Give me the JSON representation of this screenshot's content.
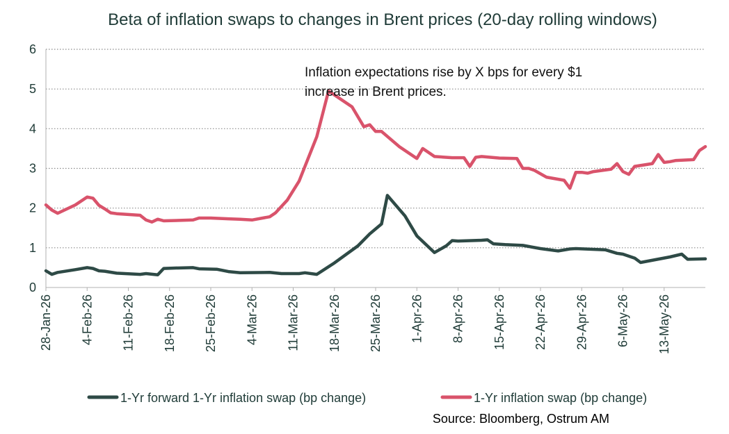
{
  "chart_data": {
    "type": "line",
    "title": "Beta of inflation swaps to changes in Brent prices (20-day rolling windows)",
    "annotation_lines": [
      "Inflation expectations rise by X bps for every $1",
      "increase in Brent prices."
    ],
    "source": "Source: Bloomberg, Ostrum AM",
    "ylim": [
      0,
      6
    ],
    "yticks": [
      "0",
      "1",
      "2",
      "3",
      "4",
      "5",
      "6"
    ],
    "xtick_labels": [
      "28-Jan-26",
      "4-Feb-26",
      "11-Feb-26",
      "18-Feb-26",
      "25-Feb-26",
      "4-Mar-26",
      "11-Mar-26",
      "18-Mar-26",
      "25-Mar-26",
      "1-Apr-26",
      "8-Apr-26",
      "15-Apr-26",
      "22-Apr-26",
      "29-Apr-26",
      "6-May-26",
      "13-May-26"
    ],
    "x_range": [
      "2026-01-28",
      "2026-05-20"
    ],
    "grid": true,
    "grid_style": "dotted horizontal",
    "legend_position": "bottom",
    "series": [
      {
        "name": "1-Yr forward 1-Yr inflation swap (bp change)",
        "color": "#2e4a46",
        "points": [
          [
            "2026-01-28",
            0.42
          ],
          [
            "2026-01-29",
            0.33
          ],
          [
            "2026-01-30",
            0.38
          ],
          [
            "2026-02-02",
            0.45
          ],
          [
            "2026-02-04",
            0.5
          ],
          [
            "2026-02-05",
            0.48
          ],
          [
            "2026-02-06",
            0.42
          ],
          [
            "2026-02-07",
            0.41
          ],
          [
            "2026-02-09",
            0.36
          ],
          [
            "2026-02-13",
            0.33
          ],
          [
            "2026-02-14",
            0.35
          ],
          [
            "2026-02-16",
            0.32
          ],
          [
            "2026-02-17",
            0.48
          ],
          [
            "2026-02-19",
            0.49
          ],
          [
            "2026-02-22",
            0.5
          ],
          [
            "2026-02-23",
            0.47
          ],
          [
            "2026-02-26",
            0.46
          ],
          [
            "2026-02-28",
            0.4
          ],
          [
            "2026-03-02",
            0.37
          ],
          [
            "2026-03-07",
            0.38
          ],
          [
            "2026-03-09",
            0.35
          ],
          [
            "2026-03-12",
            0.35
          ],
          [
            "2026-03-13",
            0.37
          ],
          [
            "2026-03-15",
            0.33
          ],
          [
            "2026-03-18",
            0.62
          ],
          [
            "2026-03-22",
            1.05
          ],
          [
            "2026-03-24",
            1.35
          ],
          [
            "2026-03-26",
            1.6
          ],
          [
            "2026-03-27",
            2.32
          ],
          [
            "2026-03-30",
            1.8
          ],
          [
            "2026-04-01",
            1.3
          ],
          [
            "2026-04-04",
            0.88
          ],
          [
            "2026-04-06",
            1.05
          ],
          [
            "2026-04-07",
            1.18
          ],
          [
            "2026-04-08",
            1.17
          ],
          [
            "2026-04-12",
            1.19
          ],
          [
            "2026-04-13",
            1.2
          ],
          [
            "2026-04-14",
            1.1
          ],
          [
            "2026-04-16",
            1.08
          ],
          [
            "2026-04-19",
            1.06
          ],
          [
            "2026-04-22",
            0.98
          ],
          [
            "2026-04-25",
            0.92
          ],
          [
            "2026-04-27",
            0.97
          ],
          [
            "2026-04-28",
            0.98
          ],
          [
            "2026-05-03",
            0.95
          ],
          [
            "2026-05-05",
            0.86
          ],
          [
            "2026-05-06",
            0.84
          ],
          [
            "2026-05-08",
            0.74
          ],
          [
            "2026-05-09",
            0.63
          ],
          [
            "2026-05-14",
            0.77
          ],
          [
            "2026-05-16",
            0.84
          ],
          [
            "2026-05-17",
            0.71
          ],
          [
            "2026-05-20",
            0.72
          ]
        ]
      },
      {
        "name": "1-Yr inflation swap (bp change)",
        "color": "#d9536b",
        "points": [
          [
            "2026-01-28",
            2.08
          ],
          [
            "2026-01-29",
            1.95
          ],
          [
            "2026-01-30",
            1.87
          ],
          [
            "2026-02-02",
            2.08
          ],
          [
            "2026-02-04",
            2.28
          ],
          [
            "2026-02-05",
            2.25
          ],
          [
            "2026-02-06",
            2.07
          ],
          [
            "2026-02-07",
            1.98
          ],
          [
            "2026-02-08",
            1.88
          ],
          [
            "2026-02-09",
            1.86
          ],
          [
            "2026-02-13",
            1.82
          ],
          [
            "2026-02-14",
            1.7
          ],
          [
            "2026-02-15",
            1.65
          ],
          [
            "2026-02-16",
            1.72
          ],
          [
            "2026-02-17",
            1.68
          ],
          [
            "2026-02-22",
            1.7
          ],
          [
            "2026-02-23",
            1.75
          ],
          [
            "2026-02-25",
            1.75
          ],
          [
            "2026-02-28",
            1.73
          ],
          [
            "2026-03-02",
            1.72
          ],
          [
            "2026-03-04",
            1.7
          ],
          [
            "2026-03-07",
            1.78
          ],
          [
            "2026-03-08",
            1.88
          ],
          [
            "2026-03-10",
            2.2
          ],
          [
            "2026-03-12",
            2.68
          ],
          [
            "2026-03-15",
            3.8
          ],
          [
            "2026-03-17",
            4.95
          ],
          [
            "2026-03-21",
            4.55
          ],
          [
            "2026-03-23",
            4.05
          ],
          [
            "2026-03-24",
            4.1
          ],
          [
            "2026-03-25",
            3.93
          ],
          [
            "2026-03-26",
            3.93
          ],
          [
            "2026-03-29",
            3.55
          ],
          [
            "2026-04-01",
            3.25
          ],
          [
            "2026-04-02",
            3.5
          ],
          [
            "2026-04-03",
            3.4
          ],
          [
            "2026-04-04",
            3.3
          ],
          [
            "2026-04-07",
            3.27
          ],
          [
            "2026-04-09",
            3.27
          ],
          [
            "2026-04-10",
            3.05
          ],
          [
            "2026-04-11",
            3.28
          ],
          [
            "2026-04-12",
            3.3
          ],
          [
            "2026-04-15",
            3.26
          ],
          [
            "2026-04-18",
            3.25
          ],
          [
            "2026-04-19",
            3.0
          ],
          [
            "2026-04-20",
            3.0
          ],
          [
            "2026-04-21",
            2.95
          ],
          [
            "2026-04-23",
            2.78
          ],
          [
            "2026-04-26",
            2.7
          ],
          [
            "2026-04-27",
            2.5
          ],
          [
            "2026-04-28",
            2.9
          ],
          [
            "2026-04-29",
            2.9
          ],
          [
            "2026-04-30",
            2.88
          ],
          [
            "2026-05-01",
            2.92
          ],
          [
            "2026-05-04",
            2.98
          ],
          [
            "2026-05-05",
            3.12
          ],
          [
            "2026-05-06",
            2.92
          ],
          [
            "2026-05-07",
            2.85
          ],
          [
            "2026-05-08",
            3.05
          ],
          [
            "2026-05-11",
            3.12
          ],
          [
            "2026-05-12",
            3.35
          ],
          [
            "2026-05-13",
            3.15
          ],
          [
            "2026-05-14",
            3.17
          ],
          [
            "2026-05-15",
            3.2
          ],
          [
            "2026-05-18",
            3.22
          ],
          [
            "2026-05-19",
            3.45
          ],
          [
            "2026-05-20",
            3.55
          ]
        ]
      }
    ]
  }
}
